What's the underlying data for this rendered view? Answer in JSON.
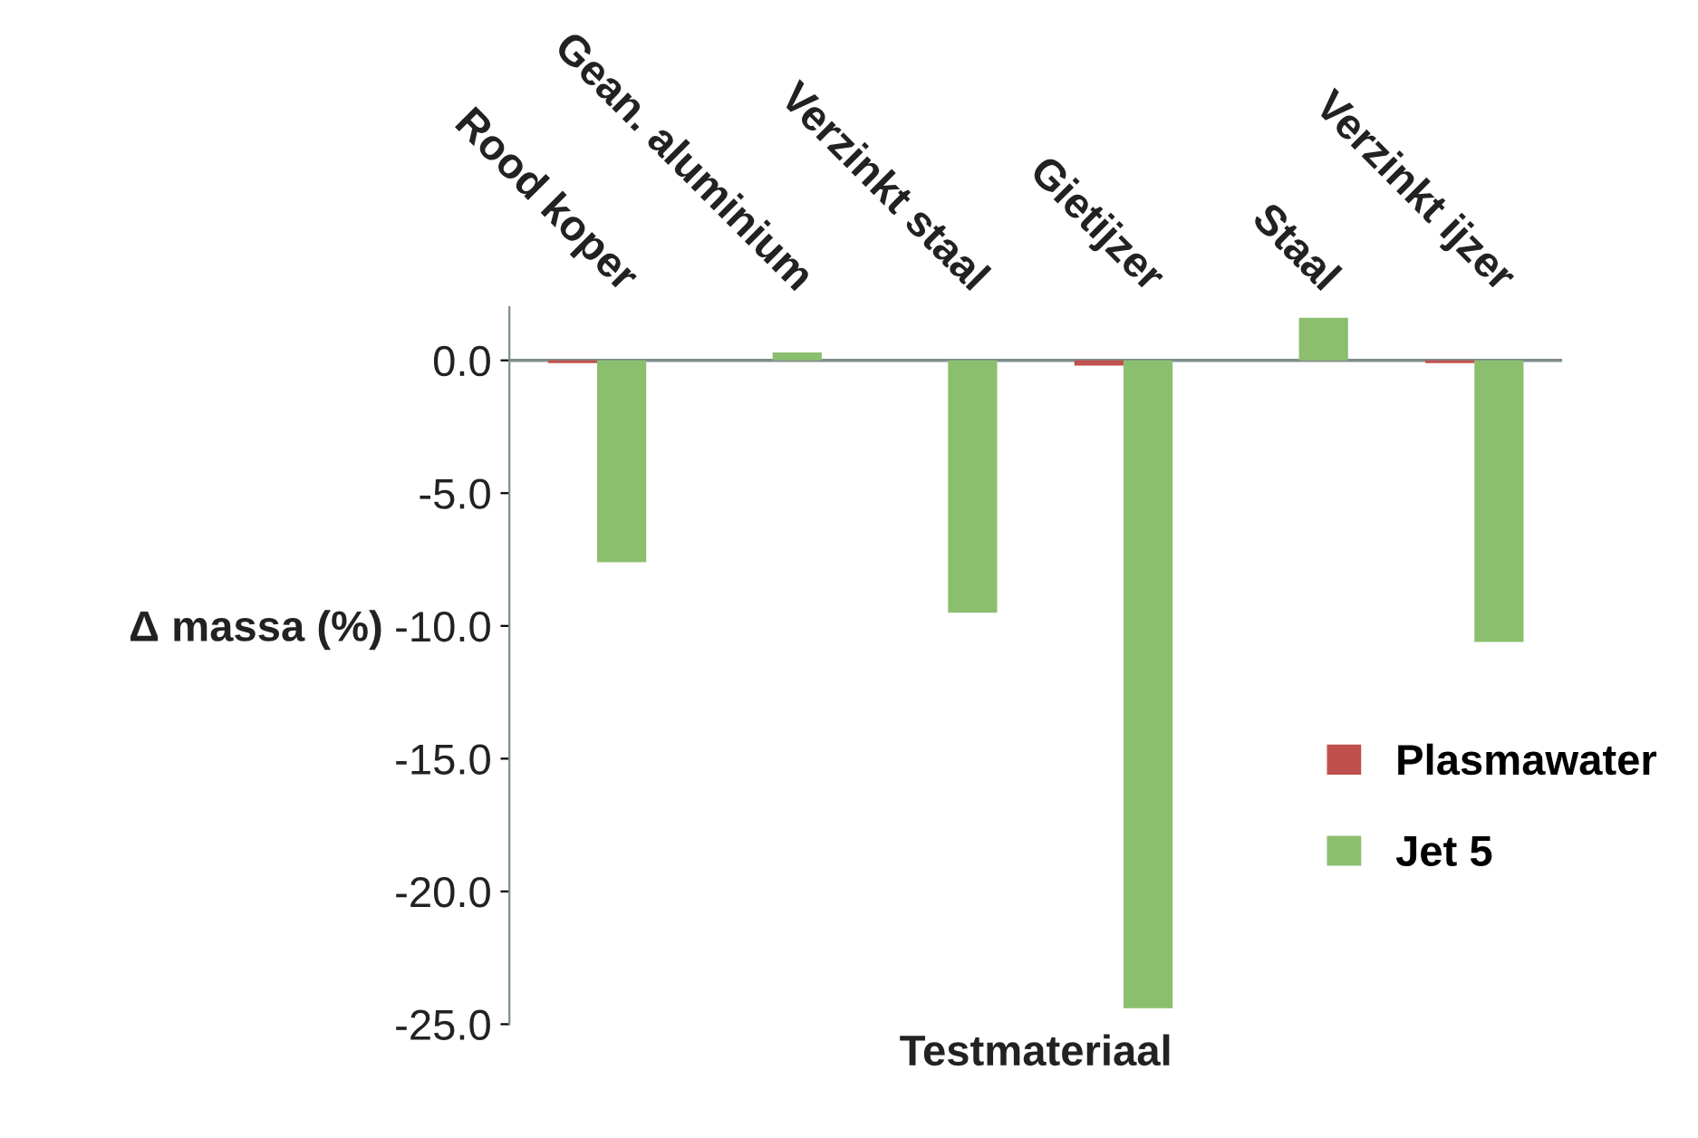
{
  "chart_data": {
    "type": "bar",
    "xlabel": "Testmateriaal",
    "ylabel": "Δ massa (%)",
    "categories": [
      "Rood koper",
      "Gean. aluminium",
      "Verzinkt staal",
      "Gietijzer",
      "Staal",
      "Verzinkt ijzer"
    ],
    "series": [
      {
        "name": "Plasmawater",
        "color": "#c0504d",
        "values": [
          -0.1,
          0,
          0,
          -0.2,
          0,
          -0.1
        ]
      },
      {
        "name": "Jet 5",
        "color": "#8bbf6e",
        "values": [
          -7.6,
          0.3,
          -9.5,
          -24.4,
          1.6,
          -10.6
        ]
      }
    ],
    "ylim": [
      -25,
      2
    ],
    "yticks": [
      {
        "value": 0,
        "label": "0.0"
      },
      {
        "value": -5,
        "label": "-5.0"
      },
      {
        "value": -10,
        "label": "-10.0"
      },
      {
        "value": -15,
        "label": "-15.0"
      },
      {
        "value": -20,
        "label": "-20.0"
      },
      {
        "value": -25,
        "label": "-25.0"
      }
    ],
    "grid": false,
    "legend": "right"
  }
}
